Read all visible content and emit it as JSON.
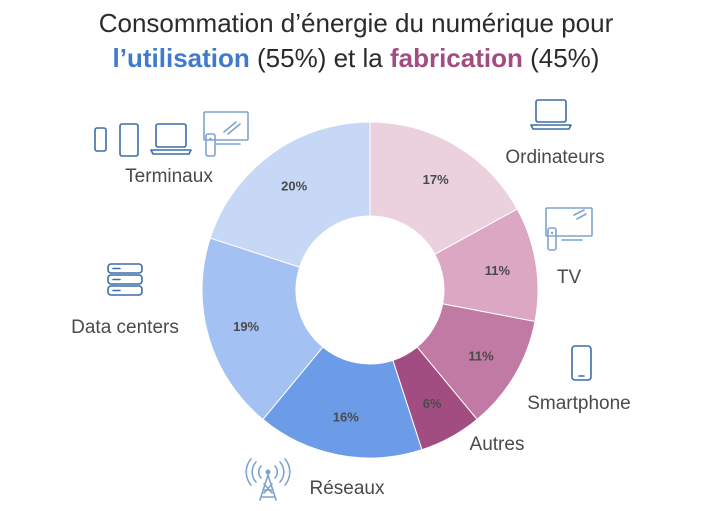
{
  "title": {
    "line1": "Consommation d’énergie du numérique pour",
    "use_word": "l’utilisation",
    "use_pct": " (55%) et la ",
    "fab_word": "fabrication",
    "fab_pct": " (45%)"
  },
  "colors": {
    "use_highlight": "#3e7ccb",
    "fab_highlight": "#a24d82",
    "icons": "#3a6ea8"
  },
  "chart_data": {
    "type": "pie",
    "donut": true,
    "categories": [
      "Ordinateurs",
      "TV",
      "Smartphone",
      "Autres",
      "Réseaux",
      "Data centers",
      "Terminaux"
    ],
    "values": [
      17,
      11,
      11,
      6,
      16,
      19,
      20
    ],
    "value_labels": [
      "17%",
      "11%",
      "11%",
      "6%",
      "16%",
      "19%",
      "20%"
    ],
    "colors": [
      "#ead1dd",
      "#dba7c3",
      "#c07aa3",
      "#a24d82",
      "#6c9ce8",
      "#a3c1f3",
      "#c7d8f6"
    ],
    "groups": [
      {
        "label": "l’utilisation",
        "share": 55
      },
      {
        "label": "fabrication",
        "share": 45
      }
    ],
    "icons": [
      "laptop-icon",
      "tv-remote-icon",
      "smartphone-icon",
      "",
      "antenna-icon",
      "server-icon",
      "devices-icon"
    ]
  }
}
